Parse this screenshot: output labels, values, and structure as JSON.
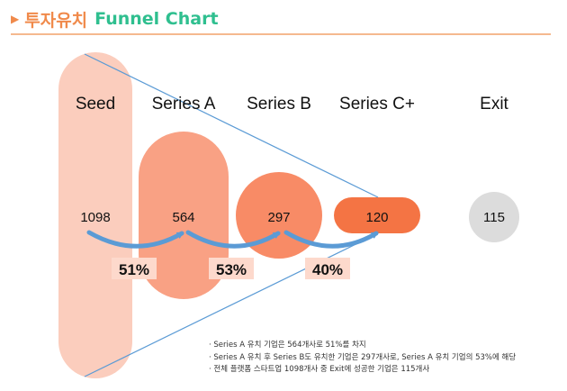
{
  "header": {
    "title_ko": "투자유치",
    "title_en": "Funnel Chart"
  },
  "chart_data": {
    "type": "funnel",
    "title": "투자유치 Funnel Chart",
    "categories": [
      "Seed",
      "Series A",
      "Series B",
      "Series C+",
      "Exit"
    ],
    "values": [
      1098,
      564,
      297,
      120,
      115
    ],
    "conversions": [
      {
        "from": "Seed",
        "to": "Series A",
        "label": "51%"
      },
      {
        "from": "Series A",
        "to": "Series B",
        "label": "53%"
      },
      {
        "from": "Series B",
        "to": "Series C+",
        "label": "40%"
      }
    ],
    "colors": {
      "seed": "#fbcdbd",
      "series_a": "#f9a184",
      "series_b": "#f88b66",
      "series_c": "#f47444",
      "exit": "#dcdcdc",
      "arrow": "#5b9bd5",
      "funnel_line": "#5b9bd5",
      "pct_bg": "#fdd9cc"
    }
  },
  "notes": [
    "Series A 유치 기업은 564개사로 51%를 차지",
    "Series A 유치 후 Series B도 유치한 기업은 297개사로, Series A 유치 기업의 53%에 해당",
    "전체 플랫폼 스타트업 1098개사 중 Exit에 성공한 기업은 115개사"
  ]
}
